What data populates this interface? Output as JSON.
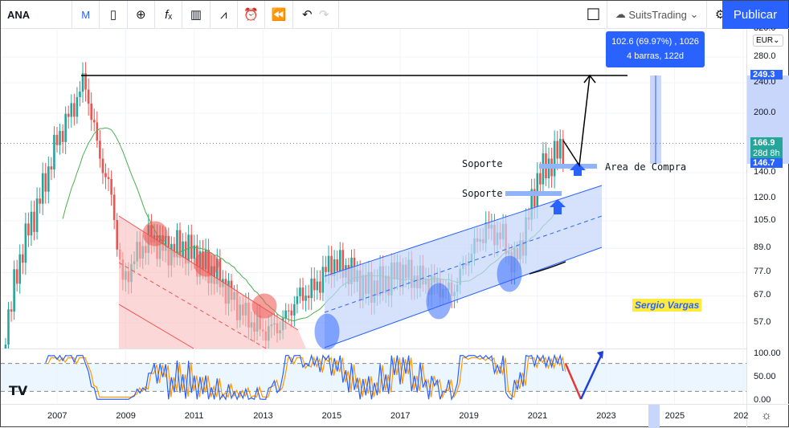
{
  "toolbar": {
    "symbol": "ANA",
    "interval": "M",
    "icons": [
      "candles-icon",
      "compare-plus-icon",
      "indicators-fx-icon",
      "bar-chart-icon",
      "templates-icon",
      "alert-clock-icon",
      "replay-icon",
      "undo-icon",
      "redo-icon"
    ],
    "layout_name": "SuitsTrading",
    "publish_label": "Publicar"
  },
  "measure_tooltip": {
    "line1": "102.6 (69.97%) , 1026",
    "line2": "4 barras, 122d"
  },
  "annotations": {
    "support1": "Soporte",
    "support2": "Soporte",
    "buy_area": "Area de Compra",
    "author": "Sergio Vargas"
  },
  "price_axis": {
    "currency": "EUR",
    "top_partial": "320.0",
    "ticks": [
      "280.0",
      "240.0",
      "200.0",
      "140.0",
      "120.0",
      "105.0",
      "89.0",
      "77.0",
      "67.0",
      "57.0"
    ],
    "tag_high": "249.3",
    "tag_last": "166.9",
    "tag_countdown": "28d 8h",
    "tag_low": "146.7"
  },
  "osc_axis": {
    "ticks": [
      "100.00",
      "50.00",
      "0.00"
    ]
  },
  "time_axis": {
    "ticks": [
      "2007",
      "2009",
      "2011",
      "2013",
      "2015",
      "2017",
      "2019",
      "2021",
      "2023",
      "2025",
      "202"
    ]
  },
  "colors": {
    "up": "#26a69a",
    "down": "#ef5350",
    "accent": "#2962ff",
    "ma": "#4caf50",
    "k": "#2962ff",
    "d": "#ff9800"
  },
  "chart_data": {
    "type": "candlestick",
    "scale": "log",
    "interval": "monthly",
    "x": [
      2005.5,
      2006.0,
      2006.5,
      2007.0,
      2007.5,
      2007.8,
      2008.2,
      2008.6,
      2008.9,
      2009.3,
      2009.7,
      2010.2,
      2010.7,
      2011.2,
      2011.7,
      2012.2,
      2012.6,
      2013.0,
      2013.5,
      2014.0,
      2014.5,
      2015.0,
      2015.5,
      2016.0,
      2016.5,
      2017.0,
      2017.5,
      2018.0,
      2018.5,
      2019.0,
      2019.5,
      2020.0,
      2020.3,
      2020.6,
      2021.0,
      2021.4,
      2021.8
    ],
    "close": [
      55,
      90,
      120,
      170,
      210,
      245,
      160,
      120,
      72,
      85,
      95,
      88,
      90,
      82,
      75,
      64,
      58,
      54,
      56,
      66,
      70,
      82,
      78,
      70,
      72,
      78,
      74,
      72,
      68,
      85,
      100,
      95,
      80,
      95,
      135,
      150,
      166.9
    ],
    "ylim": [
      52,
      330
    ]
  }
}
